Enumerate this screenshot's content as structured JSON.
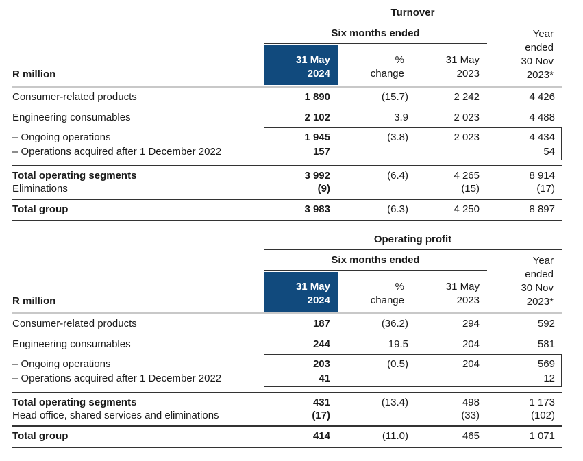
{
  "tables": [
    {
      "title": "Turnover",
      "period_header": "Six months ended",
      "row_header": "R million",
      "columns": {
        "current": [
          "31 May",
          "2024"
        ],
        "change": [
          "%",
          "change"
        ],
        "prior": [
          "31 May",
          "2023"
        ],
        "year": [
          "Year",
          "ended",
          "30 Nov",
          "2023*"
        ]
      },
      "rows": [
        {
          "label": "Consumer-related products",
          "current": "1 890",
          "change": "(15.7)",
          "prior": "2 242",
          "year": "4 426"
        },
        {
          "label": "Engineering consumables",
          "current": "2 102",
          "change": "3.9",
          "prior": "2 023",
          "year": "4 488"
        },
        {
          "label": "– Ongoing operations",
          "current": "1 945",
          "change": "(3.8)",
          "prior": "2 023",
          "year": "4 434"
        },
        {
          "label": "– Operations acquired after 1 December 2022",
          "current": "157",
          "change": "",
          "prior": "",
          "year": "54"
        },
        {
          "label": "Total operating segments",
          "current": "3 992",
          "change": "(6.4)",
          "prior": "4 265",
          "year": "8 914"
        },
        {
          "label": "Eliminations",
          "current": "(9)",
          "change": "",
          "prior": "(15)",
          "year": "(17)"
        },
        {
          "label": "Total group",
          "current": "3 983",
          "change": "(6.3)",
          "prior": "4 250",
          "year": "8 897"
        }
      ]
    },
    {
      "title": "Operating profit",
      "period_header": "Six months ended",
      "row_header": "R million",
      "columns": {
        "current": [
          "31 May",
          "2024"
        ],
        "change": [
          "%",
          "change"
        ],
        "prior": [
          "31 May",
          "2023"
        ],
        "year": [
          "Year",
          "ended",
          "30 Nov",
          "2023*"
        ]
      },
      "rows": [
        {
          "label": "Consumer-related products",
          "current": "187",
          "change": "(36.2)",
          "prior": "294",
          "year": "592"
        },
        {
          "label": "Engineering consumables",
          "current": "244",
          "change": "19.5",
          "prior": "204",
          "year": "581"
        },
        {
          "label": "– Ongoing operations",
          "current": "203",
          "change": "(0.5)",
          "prior": "204",
          "year": "569"
        },
        {
          "label": "– Operations acquired after 1 December 2022",
          "current": "41",
          "change": "",
          "prior": "",
          "year": "12"
        },
        {
          "label": "Total operating segments",
          "current": "431",
          "change": "(13.4)",
          "prior": "498",
          "year": "1 173"
        },
        {
          "label": "Head office, shared services and eliminations",
          "current": "(17)",
          "change": "",
          "prior": "(33)",
          "year": "(102)"
        },
        {
          "label": "Total group",
          "current": "414",
          "change": "(11.0)",
          "prior": "465",
          "year": "1 071"
        }
      ]
    }
  ],
  "colors": {
    "header_fill": "#114a7d",
    "header_text": "#ffffff",
    "separator": "#c8c8c8"
  }
}
